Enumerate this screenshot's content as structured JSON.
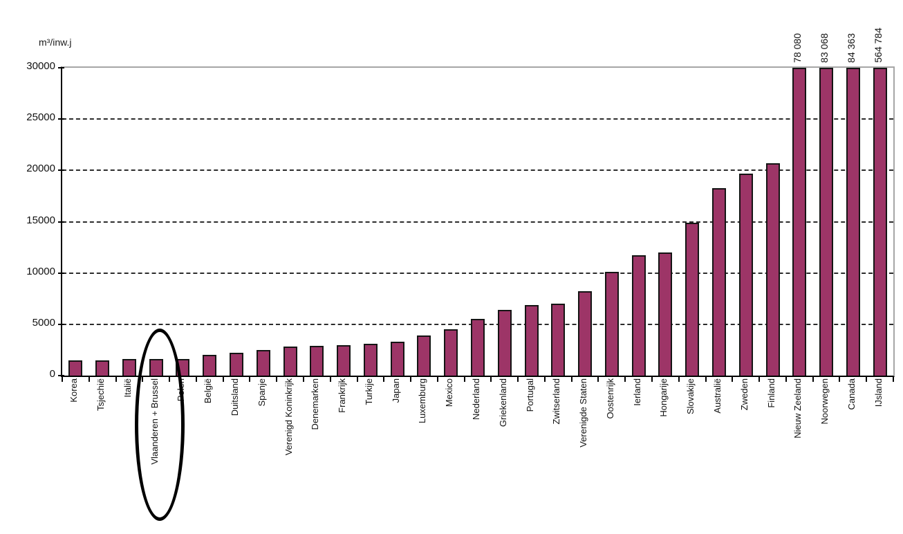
{
  "chart_data": {
    "type": "bar",
    "ylabel": "m³/inw.j",
    "ylim": [
      0,
      30000
    ],
    "yticks": [
      0,
      5000,
      10000,
      15000,
      20000,
      25000,
      30000
    ],
    "grid": "dashed-horizontal",
    "legend": "none",
    "bar_color": "#9D3567",
    "bar_border_color": "#141414",
    "highlighted_category": "Vlaanderen + Brussel",
    "highlight_index": 3,
    "categories": [
      "Korea",
      "Tsjechië",
      "Italië",
      "Vlaanderen + Brussel",
      "Polen",
      "België",
      "Duitsland",
      "Spanje",
      "Verenigd Koninkrijk",
      "Denemarken",
      "Frankrijk",
      "Turkije",
      "Japan",
      "Luxemburg",
      "Mexico",
      "Nederland",
      "Griekenland",
      "Portugal",
      "Zwitserland",
      "Verenigde Staten",
      "Oostenrijk",
      "Ierland",
      "Hongarije",
      "Slovakije",
      "Australië",
      "Zweden",
      "Finland",
      "Nieuw Zeeland",
      "Noorwegen",
      "Canada",
      "IJsland"
    ],
    "values": [
      1500,
      1500,
      1600,
      1600,
      1600,
      2000,
      2200,
      2500,
      2800,
      2900,
      3000,
      3100,
      3300,
      3900,
      4500,
      5500,
      6400,
      6900,
      7000,
      8200,
      10100,
      11700,
      12000,
      14900,
      18300,
      19700,
      20700,
      78080,
      83068,
      84363,
      564784
    ],
    "bar_top_labels": [
      "",
      "",
      "",
      "",
      "",
      "",
      "",
      "",
      "",
      "",
      "",
      "",
      "",
      "",
      "",
      "",
      "",
      "",
      "",
      "",
      "",
      "",
      "",
      "",
      "",
      "",
      "",
      "78 080",
      "83 068",
      "84 363",
      "564 784"
    ]
  }
}
